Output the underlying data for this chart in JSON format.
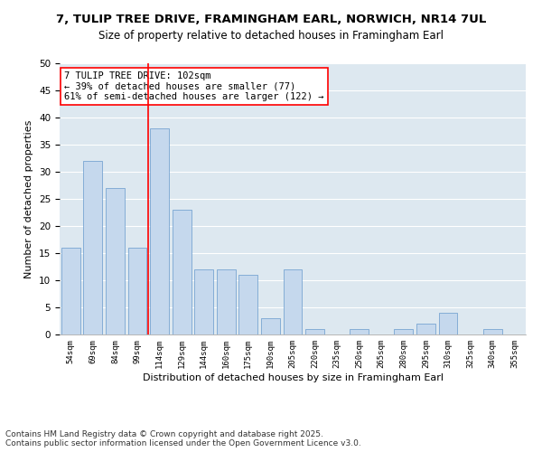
{
  "title1": "7, TULIP TREE DRIVE, FRAMINGHAM EARL, NORWICH, NR14 7UL",
  "title2": "Size of property relative to detached houses in Framingham Earl",
  "xlabel": "Distribution of detached houses by size in Framingham Earl",
  "ylabel": "Number of detached properties",
  "categories": [
    "54sqm",
    "69sqm",
    "84sqm",
    "99sqm",
    "114sqm",
    "129sqm",
    "144sqm",
    "160sqm",
    "175sqm",
    "190sqm",
    "205sqm",
    "220sqm",
    "235sqm",
    "250sqm",
    "265sqm",
    "280sqm",
    "295sqm",
    "310sqm",
    "325sqm",
    "340sqm",
    "355sqm"
  ],
  "values": [
    16,
    32,
    27,
    16,
    38,
    23,
    12,
    12,
    11,
    3,
    12,
    1,
    0,
    1,
    0,
    1,
    2,
    4,
    0,
    1,
    0
  ],
  "bar_color": "#c5d8ed",
  "bar_edge_color": "#6699cc",
  "background_color": "#dde8f0",
  "grid_color": "#ffffff",
  "annotation_box_text": "7 TULIP TREE DRIVE: 102sqm\n← 39% of detached houses are smaller (77)\n61% of semi-detached houses are larger (122) →",
  "vline_x_index": 3,
  "ylim": [
    0,
    50
  ],
  "yticks": [
    0,
    5,
    10,
    15,
    20,
    25,
    30,
    35,
    40,
    45,
    50
  ],
  "footer": "Contains HM Land Registry data © Crown copyright and database right 2025.\nContains public sector information licensed under the Open Government Licence v3.0.",
  "title1_fontsize": 9.5,
  "title2_fontsize": 8.5,
  "xlabel_fontsize": 8,
  "ylabel_fontsize": 8,
  "annotation_fontsize": 7.5,
  "footer_fontsize": 6.5
}
